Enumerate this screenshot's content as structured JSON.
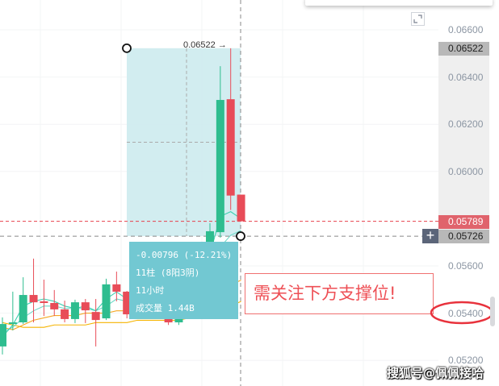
{
  "price_axis": {
    "labels": [
      "0.06600",
      "0.06400",
      "0.06200",
      "0.06000",
      "0.05600",
      "0.05400",
      "0.05200"
    ],
    "values": [
      0.066,
      0.064,
      0.062,
      0.06,
      0.056,
      0.054,
      0.052
    ]
  },
  "tags": {
    "high": {
      "label": "0.06522",
      "value": 0.06522,
      "color": "#b8b8b8"
    },
    "last": {
      "label": "0.05789",
      "value": 0.05789,
      "color": "#e0636c"
    },
    "cursor": {
      "label": "0.05726",
      "value": 0.05726,
      "color": "#b8b8b8"
    }
  },
  "measure": {
    "high_label": "0.06522 →",
    "from_price": 0.06522,
    "to_price": 0.05726,
    "change": "-0.00796 (-12.21%)",
    "bars": "11柱 (8阳3阴)",
    "duration": "11小时",
    "volume": "成交量 1.44B"
  },
  "annotation": {
    "text": "需关注下方支撑位!",
    "color": "#ee4f55",
    "circled_level": "0.05400"
  },
  "watermark": "搜狐号@佩佩接哈",
  "colors": {
    "up": "#2ebd8f",
    "down": "#e84c58",
    "ma_fast": "#4fd6bd",
    "ma_slow": "#f5a623",
    "measure_fill": "#cdebee"
  },
  "candles": [
    [
      0.05259,
      0.05382,
      0.05225,
      0.05354
    ],
    [
      0.05354,
      0.05491,
      0.05327,
      0.05361
    ],
    [
      0.05361,
      0.05552,
      0.05354,
      0.05477
    ],
    [
      0.05477,
      0.05631,
      0.05361,
      0.05446
    ],
    [
      0.0545,
      0.05542,
      0.05388,
      0.05443
    ],
    [
      0.05443,
      0.05498,
      0.05388,
      0.05416
    ],
    [
      0.05416,
      0.05453,
      0.05361,
      0.05375
    ],
    [
      0.05375,
      0.05457,
      0.05358,
      0.05446
    ],
    [
      0.05446,
      0.0546,
      0.05358,
      0.05412
    ],
    [
      0.05405,
      0.0546,
      0.05259,
      0.05371
    ],
    [
      0.05378,
      0.05546,
      0.05371,
      0.05522
    ],
    [
      0.05522,
      0.05576,
      0.0545,
      0.05491
    ],
    [
      0.05491,
      0.05494,
      0.05378,
      0.05395
    ],
    [
      0.05395,
      0.0543,
      0.05388,
      0.05409
    ],
    [
      0.05409,
      0.0544,
      0.0538,
      0.05395
    ],
    [
      0.05395,
      0.0544,
      0.05385,
      0.0542
    ],
    [
      0.05488,
      0.0551,
      0.0535,
      0.05361
    ],
    [
      0.05361,
      0.055,
      0.0535,
      0.05488
    ],
    [
      0.0545,
      0.0562,
      0.0543,
      0.056
    ],
    [
      0.0554,
      0.0564,
      0.0552,
      0.056
    ],
    [
      0.056,
      0.05781,
      0.0559,
      0.05747
    ],
    [
      0.05743,
      0.06446,
      0.0572,
      0.06303
    ],
    [
      0.06306,
      0.06522,
      0.05837,
      0.05898
    ],
    [
      0.05902,
      0.05902,
      0.05789,
      0.05789
    ]
  ],
  "ma_fast": [
    0.053,
    0.0535,
    0.0543,
    0.0545,
    0.0546,
    0.0545,
    0.0543,
    0.0542,
    0.0543,
    0.0541,
    0.0546,
    0.0549,
    0.0546,
    0.0543,
    0.0542,
    0.0543,
    0.0544,
    0.0545,
    0.055,
    0.0556,
    0.0565,
    0.0581,
    0.0583,
    0.058
  ],
  "ma_mid": [
    0.0532,
    0.0534,
    0.0538,
    0.0541,
    0.0543,
    0.0543,
    0.0542,
    0.0542,
    0.0542,
    0.0541,
    0.0543,
    0.0546,
    0.0545,
    0.0544,
    0.0542,
    0.0542,
    0.0543,
    0.0544,
    0.0546,
    0.055,
    0.0556,
    0.0568,
    0.0573,
    0.0575
  ],
  "ma_slow1": [
    0.0534,
    0.0533,
    0.0535,
    0.0537,
    0.0538,
    0.0539,
    0.0539,
    0.0539,
    0.054,
    0.054,
    0.054,
    0.0541,
    0.0541,
    0.0541,
    0.0541,
    0.0541,
    0.0541,
    0.0542,
    0.0542,
    0.0543,
    0.0545,
    0.0549,
    0.0552,
    0.0554
  ],
  "ma_slow2": [
    0.0536,
    0.0535,
    0.0534,
    0.0534,
    0.0534,
    0.0535,
    0.0535,
    0.0535,
    0.0535,
    0.0536,
    0.0536,
    0.0536,
    0.0536,
    0.0537,
    0.0537,
    0.0537,
    0.0537,
    0.0537,
    0.0538,
    0.0538,
    0.0539,
    0.0541,
    0.0543,
    0.0545
  ]
}
